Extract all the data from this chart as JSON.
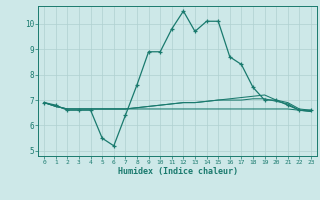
{
  "background_color": "#cde8e8",
  "grid_color": "#b0d0d0",
  "line_color": "#1a7a6e",
  "xlabel": "Humidex (Indice chaleur)",
  "xlim": [
    -0.5,
    23.5
  ],
  "ylim": [
    4.8,
    10.7
  ],
  "yticks": [
    5,
    6,
    7,
    8,
    9,
    10
  ],
  "xticks": [
    0,
    1,
    2,
    3,
    4,
    5,
    6,
    7,
    8,
    9,
    10,
    11,
    12,
    13,
    14,
    15,
    16,
    17,
    18,
    19,
    20,
    21,
    22,
    23
  ],
  "series": [
    {
      "x": [
        0,
        1,
        2,
        3,
        4,
        5,
        6,
        7,
        8,
        9,
        10,
        11,
        12,
        13,
        14,
        15,
        16,
        17,
        18,
        19,
        20,
        21,
        22,
        23
      ],
      "y": [
        6.9,
        6.8,
        6.6,
        6.6,
        6.6,
        5.5,
        5.2,
        6.4,
        7.6,
        8.9,
        8.9,
        9.8,
        10.5,
        9.7,
        10.1,
        10.1,
        8.7,
        8.4,
        7.5,
        7.0,
        7.0,
        6.8,
        6.6,
        6.6
      ],
      "marker": true
    },
    {
      "x": [
        0,
        1,
        2,
        3,
        4,
        5,
        6,
        7,
        8,
        9,
        10,
        11,
        12,
        13,
        14,
        15,
        16,
        17,
        18,
        19,
        20,
        21,
        22,
        23
      ],
      "y": [
        6.9,
        6.75,
        6.65,
        6.65,
        6.65,
        6.65,
        6.65,
        6.65,
        6.7,
        6.75,
        6.8,
        6.85,
        6.9,
        6.9,
        6.95,
        7.0,
        7.05,
        7.1,
        7.15,
        7.2,
        7.0,
        6.9,
        6.65,
        6.6
      ],
      "marker": false
    },
    {
      "x": [
        0,
        1,
        2,
        3,
        4,
        5,
        6,
        7,
        8,
        9,
        10,
        11,
        12,
        13,
        14,
        15,
        16,
        17,
        18,
        19,
        20,
        21,
        22,
        23
      ],
      "y": [
        6.9,
        6.75,
        6.65,
        6.65,
        6.65,
        6.65,
        6.65,
        6.65,
        6.7,
        6.75,
        6.8,
        6.85,
        6.9,
        6.9,
        6.95,
        7.0,
        7.0,
        7.0,
        7.05,
        7.05,
        6.95,
        6.85,
        6.6,
        6.55
      ],
      "marker": false
    },
    {
      "x": [
        0,
        1,
        2,
        3,
        4,
        5,
        6,
        7,
        8,
        9,
        10,
        11,
        12,
        13,
        14,
        15,
        16,
        17,
        18,
        19,
        20,
        21,
        22,
        23
      ],
      "y": [
        6.9,
        6.75,
        6.65,
        6.65,
        6.65,
        6.65,
        6.65,
        6.65,
        6.65,
        6.65,
        6.65,
        6.65,
        6.65,
        6.65,
        6.65,
        6.65,
        6.65,
        6.65,
        6.65,
        6.65,
        6.65,
        6.65,
        6.6,
        6.55
      ],
      "marker": false
    }
  ]
}
